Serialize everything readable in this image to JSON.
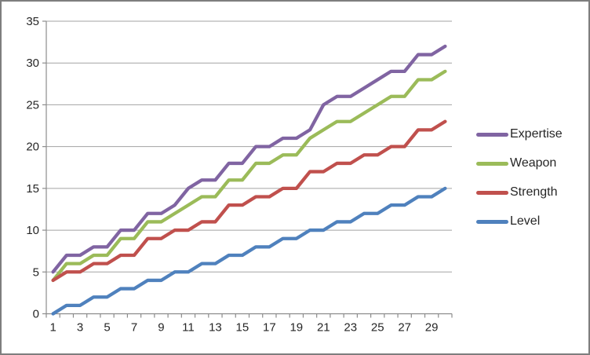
{
  "chart_data": {
    "type": "line",
    "x": [
      1,
      2,
      3,
      4,
      5,
      6,
      7,
      8,
      9,
      10,
      11,
      12,
      13,
      14,
      15,
      16,
      17,
      18,
      19,
      20,
      21,
      22,
      23,
      24,
      25,
      26,
      27,
      28,
      29,
      30
    ],
    "x_tick_labels": [
      "1",
      "3",
      "5",
      "7",
      "9",
      "11",
      "13",
      "15",
      "17",
      "19",
      "21",
      "23",
      "25",
      "27",
      "29"
    ],
    "y_ticks": [
      "0",
      "5",
      "10",
      "15",
      "20",
      "25",
      "30",
      "35"
    ],
    "ylim": [
      0,
      35
    ],
    "title": "",
    "xlabel": "",
    "ylabel": "",
    "grid": "horizontal",
    "legend_position": "right",
    "series": [
      {
        "name": "Expertise",
        "color": "#8064A2",
        "values": [
          5,
          7,
          7,
          8,
          8,
          10,
          10,
          12,
          12,
          13,
          15,
          16,
          16,
          18,
          18,
          20,
          20,
          21,
          21,
          22,
          25,
          26,
          26,
          27,
          28,
          29,
          29,
          31,
          31,
          32
        ]
      },
      {
        "name": "Weapon",
        "color": "#9BBB59",
        "values": [
          4,
          6,
          6,
          7,
          7,
          9,
          9,
          11,
          11,
          12,
          13,
          14,
          14,
          16,
          16,
          18,
          18,
          19,
          19,
          21,
          22,
          23,
          23,
          24,
          25,
          26,
          26,
          28,
          28,
          29
        ]
      },
      {
        "name": "Strength",
        "color": "#C0504D",
        "values": [
          4,
          5,
          5,
          6,
          6,
          7,
          7,
          9,
          9,
          10,
          10,
          11,
          11,
          13,
          13,
          14,
          14,
          15,
          15,
          17,
          17,
          18,
          18,
          19,
          19,
          20,
          20,
          22,
          22,
          23
        ]
      },
      {
        "name": "Level",
        "color": "#4F81BD",
        "values": [
          0,
          1,
          1,
          2,
          2,
          3,
          3,
          4,
          4,
          5,
          5,
          6,
          6,
          7,
          7,
          8,
          8,
          9,
          9,
          10,
          10,
          11,
          11,
          12,
          12,
          13,
          13,
          14,
          14,
          15
        ]
      }
    ],
    "colors": {
      "gridline": "#A3A3A3",
      "axis": "#8C8C8C",
      "axis_text": "#262626",
      "background": "#FFFFFF",
      "frame_border": "#7E7E7E"
    }
  }
}
